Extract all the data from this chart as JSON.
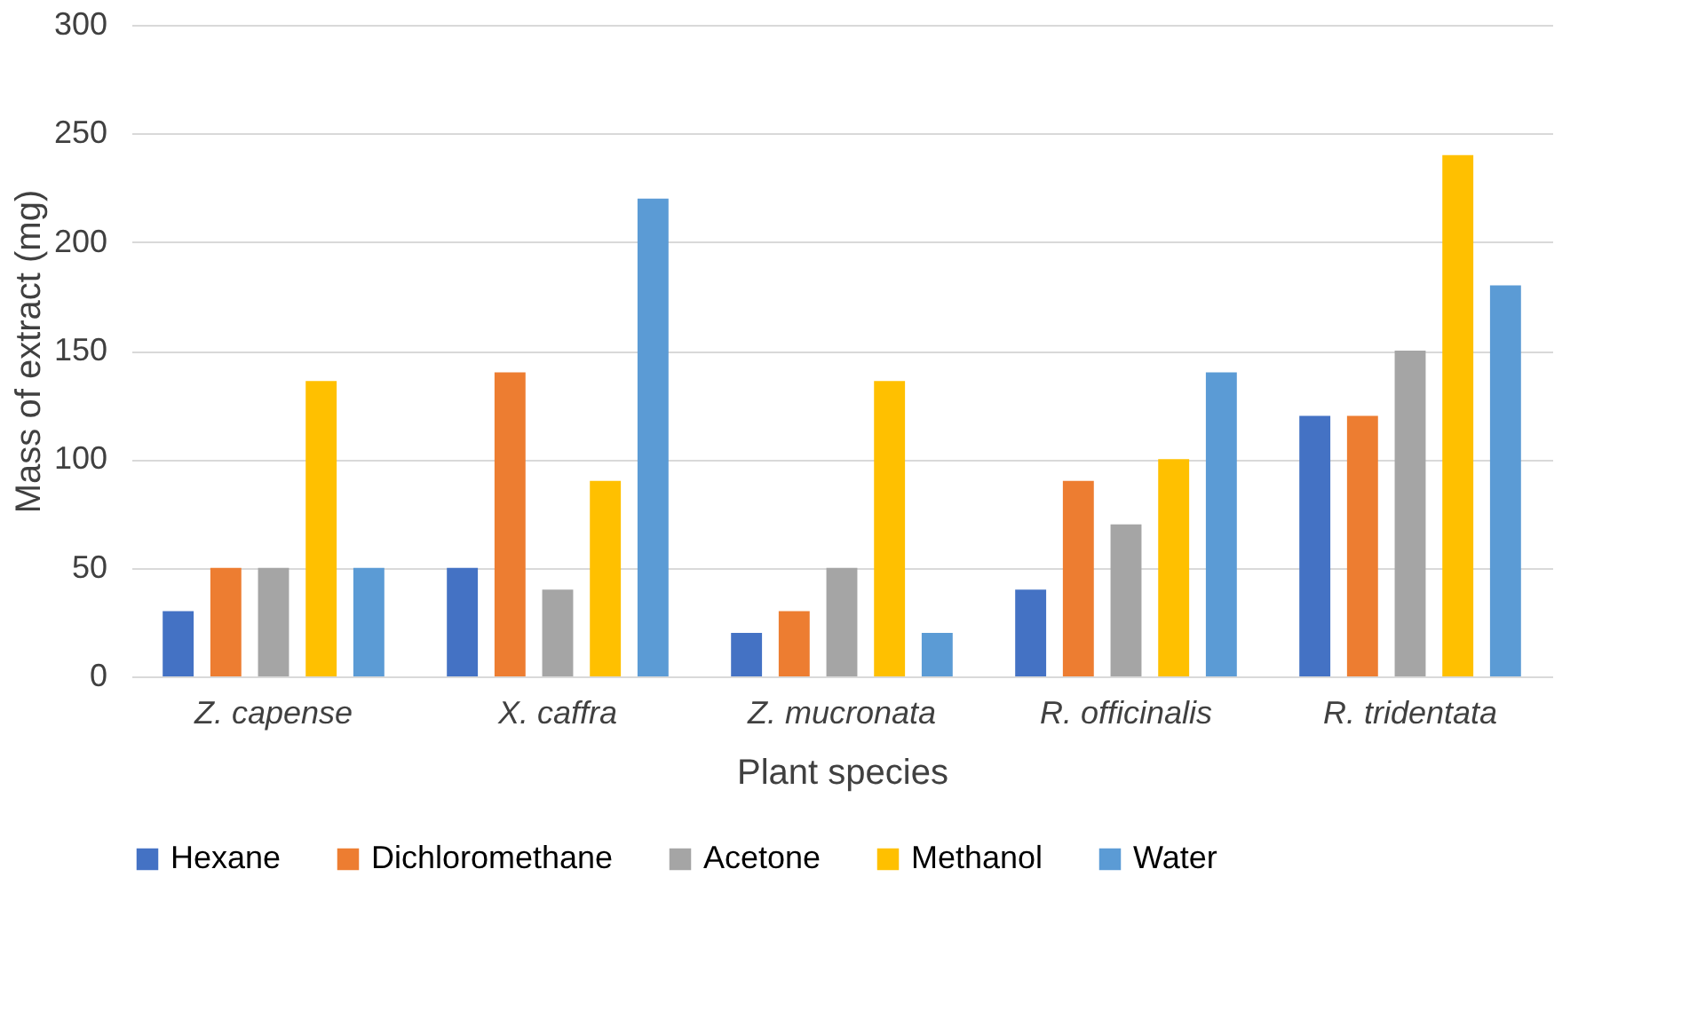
{
  "chart_data": {
    "type": "bar",
    "xlabel": "Plant species",
    "ylabel": "Mass of extract (mg)",
    "categories": [
      "Z. capense",
      "X. caffra",
      "Z. mucronata",
      "R. officinalis",
      "R. tridentata"
    ],
    "series": [
      {
        "name": "Hexane",
        "color": "#4472c4",
        "values": [
          30,
          50,
          20,
          40,
          120
        ]
      },
      {
        "name": "Dichloromethane",
        "color": "#ed7d31",
        "values": [
          50,
          140,
          30,
          90,
          120
        ]
      },
      {
        "name": "Acetone",
        "color": "#a5a5a5",
        "values": [
          50,
          40,
          50,
          70,
          150
        ]
      },
      {
        "name": "Methanol",
        "color": "#ffc000",
        "values": [
          136,
          90,
          136,
          100,
          240
        ]
      },
      {
        "name": "Water",
        "color": "#5b9bd5",
        "values": [
          50,
          220,
          20,
          140,
          180
        ]
      }
    ],
    "ylim": [
      0,
      300
    ],
    "yticks": [
      0,
      50,
      100,
      150,
      200,
      250,
      300
    ],
    "grid": "y",
    "legend": "bottom"
  }
}
